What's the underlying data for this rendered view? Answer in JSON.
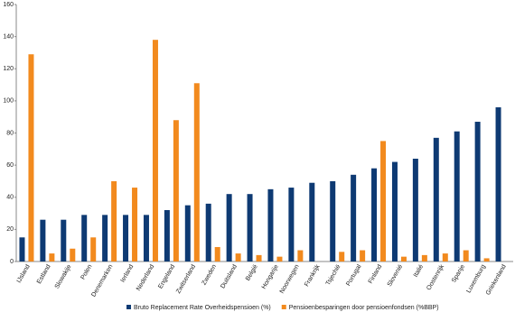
{
  "chart_data": {
    "type": "bar",
    "categories": [
      "IJsland",
      "Estland",
      "Slowakije",
      "Polen",
      "Denemarken",
      "Ierland",
      "Nederland",
      "Engeland",
      "Zwitserland",
      "Zweden",
      "Duitsland",
      "België",
      "Hongarije",
      "Noorwegen",
      "Frankrijk",
      "Tsjechië",
      "Portugal",
      "Finland",
      "Slovenië",
      "Italië",
      "Oostenrijk",
      "Spanje",
      "Luxemburg",
      "Griekenland"
    ],
    "series": [
      {
        "name": "Bruto Replacement Rate Overheidspensioen (%)",
        "color": "#0e3a73",
        "values": [
          15,
          26,
          26,
          29,
          29,
          29,
          29,
          32,
          35,
          36,
          42,
          42,
          45,
          46,
          49,
          50,
          54,
          58,
          62,
          64,
          77,
          81,
          87,
          96
        ]
      },
      {
        "name": "Pensioenbesparingen door pensioenfondsen (%BBP)",
        "color": "#f28a1e",
        "values": [
          129,
          5,
          8,
          15,
          50,
          46,
          138,
          88,
          111,
          9,
          5,
          4,
          3,
          7,
          null,
          6,
          7,
          75,
          3,
          4,
          5,
          7,
          2,
          null
        ]
      }
    ],
    "ylim": [
      0,
      160
    ],
    "yticks": [
      0,
      20,
      40,
      60,
      80,
      100,
      120,
      140,
      160
    ],
    "grid": false,
    "legend": "bottom"
  }
}
